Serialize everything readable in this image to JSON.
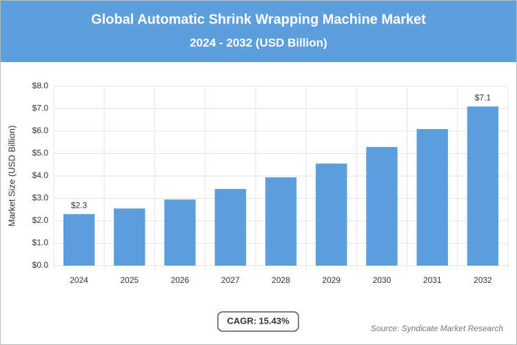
{
  "chart_data": {
    "type": "bar",
    "title": "Global Automatic Shrink Wrapping Machine Market",
    "subtitle": "2024 - 2032 (USD Billion)",
    "y_label": "Market Size (USD Billion)",
    "categories": [
      "2024",
      "2025",
      "2026",
      "2027",
      "2028",
      "2029",
      "2030",
      "2031",
      "2032"
    ],
    "values": [
      2.3,
      2.55,
      2.95,
      3.42,
      3.94,
      4.55,
      5.29,
      6.09,
      7.1
    ],
    "value_labels": [
      "$2.3",
      null,
      null,
      null,
      null,
      null,
      null,
      null,
      "$7.1"
    ],
    "color": "#5d9fdc",
    "ylim": [
      0,
      8
    ],
    "yticks": [
      {
        "value": 0,
        "label": "$0.0"
      },
      {
        "value": 1,
        "label": "$1.0"
      },
      {
        "value": 2,
        "label": "$2.0"
      },
      {
        "value": 3,
        "label": "$3.0"
      },
      {
        "value": 4,
        "label": "$4.0"
      },
      {
        "value": 5,
        "label": "$5.0"
      },
      {
        "value": 6,
        "label": "$6.0"
      },
      {
        "value": 7,
        "label": "$7.0"
      },
      {
        "value": 8,
        "label": "$8.0"
      }
    ],
    "grid": true,
    "cagr": "CAGR: 15.43%",
    "source": "Source: Syndicate Market Research"
  }
}
